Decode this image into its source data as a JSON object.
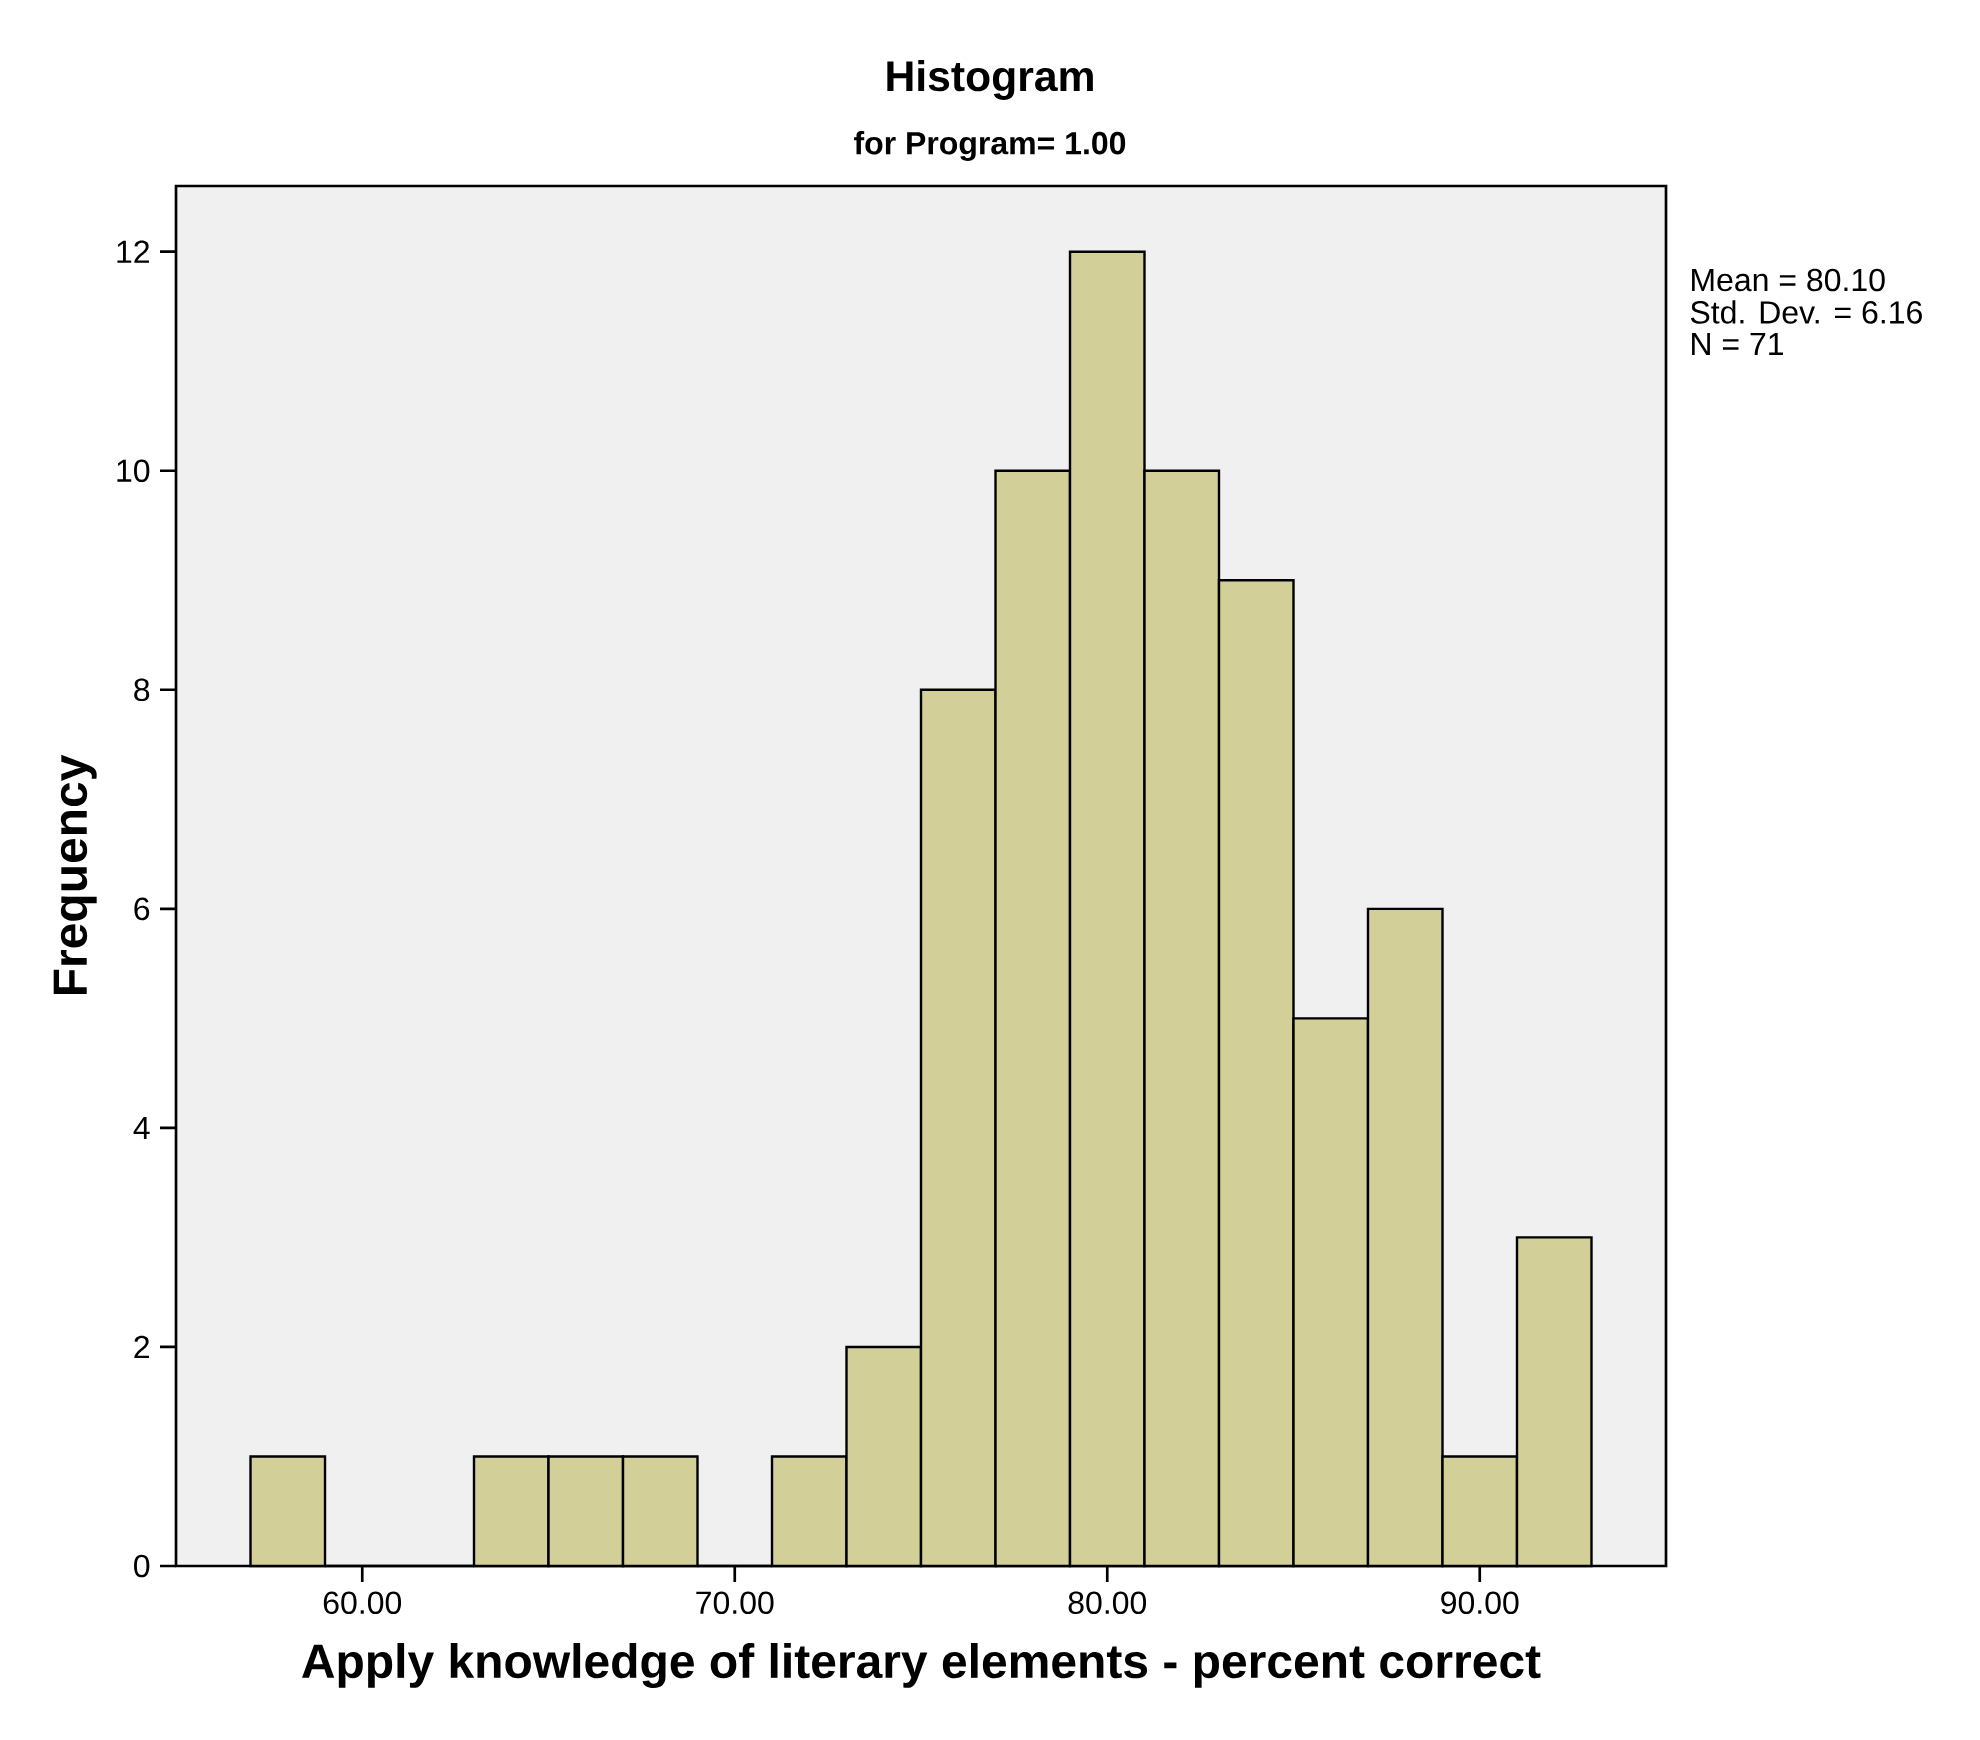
{
  "chart_data": {
    "type": "histogram",
    "title": "Histogram",
    "subtitle": "for Program= 1.00",
    "xlabel": "Apply knowledge of literary elements - percent correct",
    "ylabel": "Frequency",
    "bins": [
      57,
      59,
      61,
      63,
      65,
      67,
      69,
      71,
      73,
      75,
      77,
      79,
      81,
      83,
      85,
      87,
      89,
      91,
      93
    ],
    "values": [
      1,
      0,
      0,
      1,
      1,
      1,
      0,
      1,
      2,
      8,
      10,
      12,
      10,
      9,
      5,
      6,
      1,
      3
    ],
    "color": "#d3cf98",
    "xlim": [
      55,
      95
    ],
    "ylim": [
      0,
      12.6
    ],
    "xticks": [
      {
        "value": 60,
        "label": "60.00"
      },
      {
        "value": 70,
        "label": "70.00"
      },
      {
        "value": 80,
        "label": "80.00"
      },
      {
        "value": 90,
        "label": "90.00"
      }
    ],
    "yticks": [
      0,
      2,
      4,
      6,
      8,
      10,
      12
    ],
    "annotations": [
      "Mean = 80.10",
      "Std. Dev. = 6.16",
      "N = 71"
    ]
  }
}
